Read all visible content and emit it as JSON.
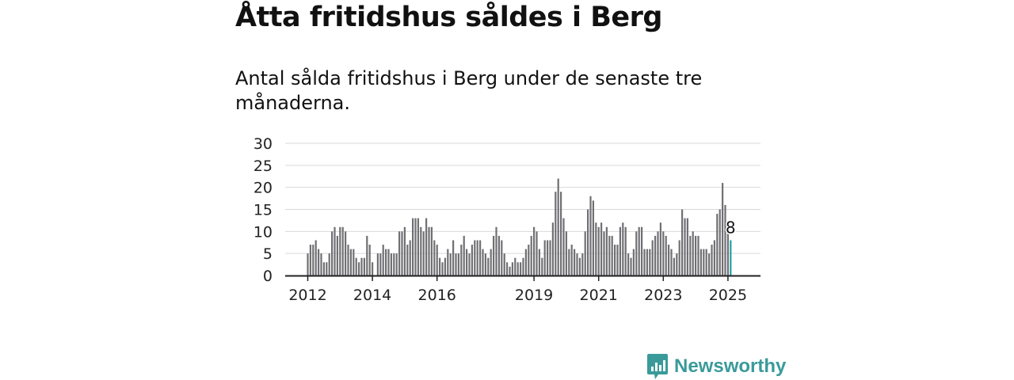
{
  "title": "Åtta fritidshus såldes i Berg",
  "subtitle": "Antal sålda fritidshus i Berg under de senaste tre månaderna.",
  "brand": {
    "name": "Newsworthy",
    "icon": "chart-bubble-icon",
    "color": "#3a9a9a"
  },
  "chart_data": {
    "type": "bar",
    "title": "Åtta fritidshus såldes i Berg",
    "subtitle": "Antal sålda fritidshus i Berg under de senaste tre månaderna.",
    "xlabel": "",
    "ylabel": "",
    "ylim": [
      0,
      30
    ],
    "yticks": [
      0,
      5,
      10,
      15,
      20,
      25,
      30
    ],
    "xtick_labels": [
      {
        "label": "2012",
        "index": 0
      },
      {
        "label": "2014",
        "index": 24
      },
      {
        "label": "2016",
        "index": 48
      },
      {
        "label": "2019",
        "index": 84
      },
      {
        "label": "2021",
        "index": 108
      },
      {
        "label": "2023",
        "index": 132
      },
      {
        "label": "2025",
        "index": 156
      }
    ],
    "grid": true,
    "bar_color": "#707074",
    "highlight_color": "#1fa0a0",
    "highlight_label": "8",
    "start": "2012-01",
    "frequency": "monthly",
    "values": [
      5,
      7,
      7,
      8,
      6,
      5,
      3,
      3,
      5,
      10,
      11,
      9,
      11,
      11,
      10,
      7,
      6,
      6,
      4,
      3,
      4,
      4,
      9,
      7,
      3,
      0,
      5,
      5,
      7,
      6,
      6,
      5,
      5,
      5,
      10,
      10,
      11,
      7,
      8,
      13,
      13,
      13,
      11,
      10,
      13,
      11,
      11,
      8,
      7,
      4,
      3,
      4,
      6,
      5,
      8,
      5,
      5,
      7,
      9,
      6,
      5,
      7,
      8,
      8,
      8,
      6,
      5,
      4,
      6,
      9,
      11,
      9,
      8,
      5,
      3,
      2,
      3,
      4,
      3,
      3,
      4,
      6,
      7,
      9,
      11,
      10,
      6,
      4,
      8,
      8,
      8,
      12,
      19,
      22,
      19,
      13,
      10,
      6,
      7,
      6,
      5,
      4,
      5,
      10,
      15,
      18,
      17,
      12,
      11,
      12,
      10,
      11,
      9,
      9,
      7,
      7,
      11,
      12,
      11,
      5,
      4,
      6,
      10,
      11,
      11,
      6,
      6,
      6,
      8,
      9,
      10,
      12,
      10,
      9,
      7,
      6,
      4,
      5,
      8,
      15,
      13,
      13,
      9,
      10,
      9,
      9,
      6,
      6,
      6,
      5,
      7,
      8,
      14,
      15,
      21,
      16,
      10,
      8
    ]
  }
}
